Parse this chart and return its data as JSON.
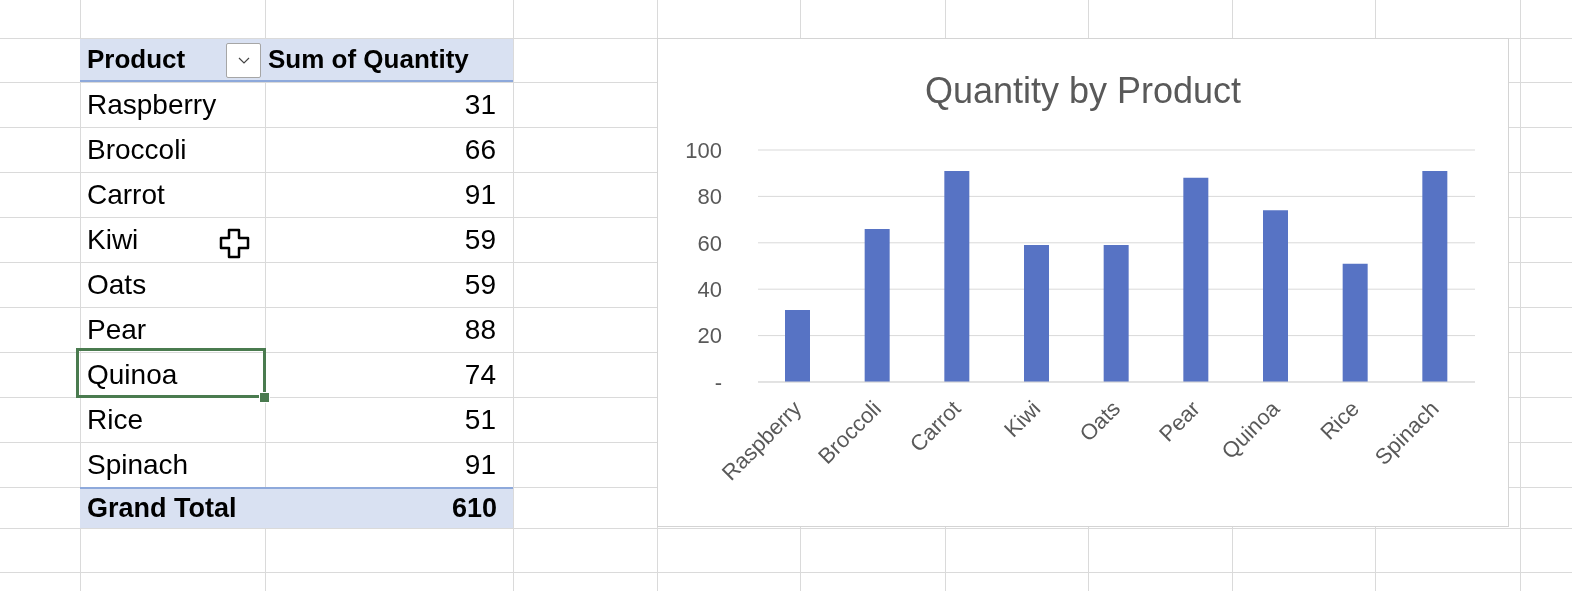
{
  "chart_data": [
    {
      "type": "other",
      "categories": [
        "Raspberry",
        "Broccoli",
        "Carrot",
        "Kiwi",
        "Oats",
        "Pear",
        "Quinoa",
        "Rice",
        "Spinach"
      ],
      "values": [
        31,
        66,
        91,
        59,
        59,
        88,
        74,
        51,
        91
      ],
      "data_labels": true,
      "annotations": [
        "Product",
        "Sum of Quantity",
        "Grand Total",
        "610"
      ]
    },
    {
      "type": "bar",
      "title": "Quantity by Product",
      "categories": [
        "Raspberry",
        "Broccoli",
        "Carrot",
        "Kiwi",
        "Oats",
        "Pear",
        "Quinoa",
        "Rice",
        "Spinach"
      ],
      "values": [
        31,
        66,
        91,
        59,
        59,
        88,
        74,
        51,
        91
      ],
      "color": "#5773c4",
      "ylim": [
        0,
        100
      ],
      "yticks": [
        {
          "value": 0,
          "label": "-"
        },
        20,
        40,
        60,
        80,
        100
      ],
      "grid": "y"
    }
  ]
}
